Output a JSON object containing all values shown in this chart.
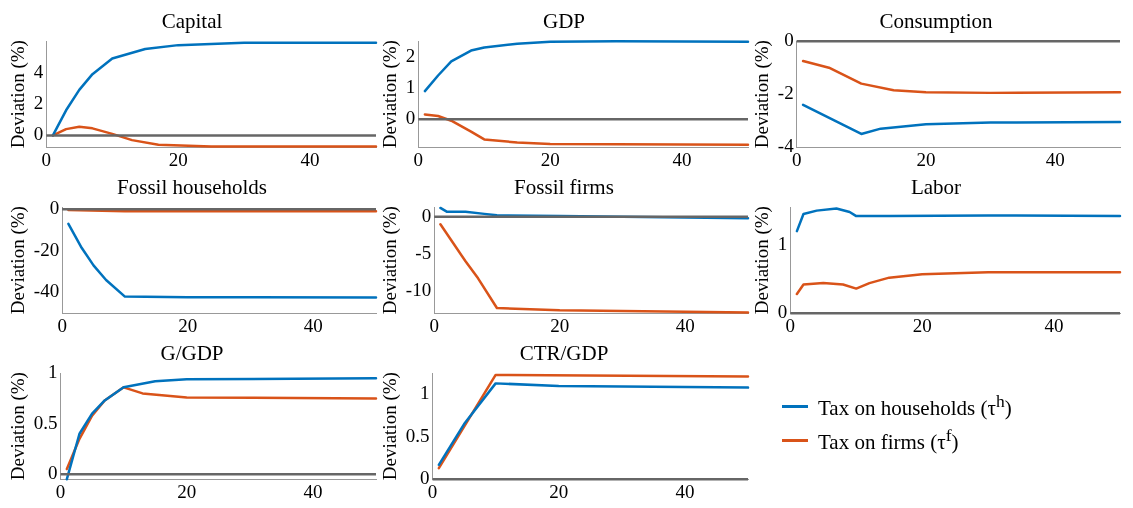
{
  "chart_data": [
    {
      "type": "line",
      "title": "Capital",
      "ylabel": "Deviation (%)",
      "xlim": [
        0,
        50
      ],
      "xticks": [
        0,
        20,
        40
      ],
      "ylim": [
        -0.75,
        6
      ],
      "yticks": [
        0,
        2,
        4
      ],
      "grid": false,
      "legend": false,
      "marker": "none",
      "line_style": "solid",
      "ref_lines": [
        {
          "axis": "y",
          "value": 0,
          "color": "#666666"
        }
      ],
      "series": [
        {
          "color": "#0072bd",
          "x": [
            1,
            3,
            5,
            7,
            10,
            15,
            20,
            30,
            50
          ],
          "values": [
            0,
            1.6,
            2.9,
            3.9,
            4.9,
            5.5,
            5.75,
            5.9,
            5.9
          ]
        },
        {
          "color": "#d95319",
          "x": [
            1,
            3,
            5,
            7,
            10,
            13,
            17,
            25,
            50
          ],
          "values": [
            0,
            0.4,
            0.55,
            0.45,
            0.1,
            -0.3,
            -0.6,
            -0.7,
            -0.7
          ]
        }
      ]
    },
    {
      "type": "line",
      "title": "GDP",
      "ylabel": "Deviation (%)",
      "xlim": [
        0,
        50
      ],
      "xticks": [
        0,
        20,
        40
      ],
      "ylim": [
        -0.9,
        2.5
      ],
      "yticks": [
        0,
        1,
        2
      ],
      "grid": false,
      "legend": false,
      "marker": "none",
      "line_style": "solid",
      "ref_lines": [
        {
          "axis": "y",
          "value": 0,
          "color": "#666666"
        }
      ],
      "series": [
        {
          "color": "#0072bd",
          "x": [
            1,
            3,
            5,
            8,
            10,
            15,
            20,
            30,
            50
          ],
          "values": [
            0.9,
            1.4,
            1.85,
            2.2,
            2.3,
            2.42,
            2.48,
            2.5,
            2.48
          ]
        },
        {
          "color": "#d95319",
          "x": [
            1,
            3,
            5,
            8,
            10,
            15,
            20,
            50
          ],
          "values": [
            0.15,
            0.1,
            -0.05,
            -0.4,
            -0.65,
            -0.75,
            -0.8,
            -0.82
          ]
        }
      ]
    },
    {
      "type": "line",
      "title": "Consumption",
      "ylabel": "Deviation (%)",
      "xlim": [
        0,
        50
      ],
      "xticks": [
        0,
        20,
        40
      ],
      "ylim": [
        -4,
        0
      ],
      "yticks": [
        -4,
        -2,
        0
      ],
      "grid": false,
      "legend": false,
      "marker": "none",
      "line_style": "solid",
      "ref_lines": [
        {
          "axis": "y",
          "value": 0,
          "color": "#666666"
        }
      ],
      "series": [
        {
          "color": "#0072bd",
          "x": [
            1,
            10,
            13,
            20,
            30,
            50
          ],
          "values": [
            -2.4,
            -3.5,
            -3.3,
            -3.13,
            -3.07,
            -3.05
          ]
        },
        {
          "color": "#d95319",
          "x": [
            1,
            5,
            10,
            15,
            20,
            30,
            50
          ],
          "values": [
            -0.75,
            -1.0,
            -1.6,
            -1.85,
            -1.93,
            -1.95,
            -1.93
          ]
        }
      ]
    },
    {
      "type": "line",
      "title": "Fossil households",
      "ylabel": "Deviation (%)",
      "xlim": [
        0,
        50
      ],
      "xticks": [
        0,
        20,
        40
      ],
      "ylim": [
        -50,
        1
      ],
      "yticks": [
        -40,
        -20,
        0
      ],
      "grid": false,
      "legend": false,
      "marker": "none",
      "line_style": "solid",
      "ref_lines": [
        {
          "axis": "y",
          "value": 0,
          "color": "#666666"
        }
      ],
      "series": [
        {
          "color": "#0072bd",
          "x": [
            1,
            3,
            5,
            7,
            10,
            20,
            50
          ],
          "values": [
            -7,
            -18,
            -27,
            -34,
            -42,
            -42.3,
            -42.5
          ]
        },
        {
          "color": "#d95319",
          "x": [
            1,
            10,
            50
          ],
          "values": [
            -0.3,
            -1,
            -1
          ]
        }
      ]
    },
    {
      "type": "line",
      "title": "Fossil firms",
      "ylabel": "Deviation (%)",
      "xlim": [
        0,
        50
      ],
      "xticks": [
        0,
        20,
        40
      ],
      "ylim": [
        -13,
        1.3
      ],
      "yticks": [
        -10,
        -5,
        0
      ],
      "grid": false,
      "legend": false,
      "marker": "none",
      "line_style": "solid",
      "ref_lines": [
        {
          "axis": "y",
          "value": 0,
          "color": "#666666"
        }
      ],
      "series": [
        {
          "color": "#0072bd",
          "x": [
            1,
            2,
            5,
            8,
            10,
            20,
            30,
            50
          ],
          "values": [
            1.2,
            0.7,
            0.7,
            0.4,
            0.2,
            0.1,
            0,
            -0.2
          ]
        },
        {
          "color": "#d95319",
          "x": [
            1,
            3,
            5,
            7,
            10,
            20,
            50
          ],
          "values": [
            -1,
            -3.5,
            -6,
            -8.3,
            -12.3,
            -12.6,
            -12.9
          ]
        }
      ]
    },
    {
      "type": "line",
      "title": "Labor",
      "ylabel": "Deviation (%)",
      "xlim": [
        0,
        50
      ],
      "xticks": [
        0,
        20,
        40
      ],
      "ylim": [
        0,
        1.55
      ],
      "yticks": [
        0,
        1
      ],
      "grid": false,
      "legend": false,
      "marker": "none",
      "line_style": "solid",
      "ref_lines": [
        {
          "axis": "y",
          "value": 0,
          "color": "#666666"
        }
      ],
      "series": [
        {
          "color": "#0072bd",
          "x": [
            1,
            2,
            4,
            7,
            9,
            10,
            15,
            30,
            50
          ],
          "values": [
            1.2,
            1.45,
            1.5,
            1.53,
            1.48,
            1.42,
            1.42,
            1.43,
            1.42
          ]
        },
        {
          "color": "#d95319",
          "x": [
            1,
            2,
            5,
            8,
            10,
            12,
            15,
            20,
            30,
            50
          ],
          "values": [
            0.28,
            0.42,
            0.44,
            0.42,
            0.36,
            0.44,
            0.52,
            0.57,
            0.6,
            0.6
          ]
        }
      ]
    },
    {
      "type": "line",
      "title": "G/GDP",
      "ylabel": "Deviation (%)",
      "xlim": [
        0,
        50
      ],
      "xticks": [
        0,
        20,
        40
      ],
      "ylim": [
        -0.05,
        1
      ],
      "yticks": [
        0,
        0.5,
        1
      ],
      "grid": false,
      "legend": false,
      "marker": "none",
      "line_style": "solid",
      "ref_lines": [
        {
          "axis": "y",
          "value": 0,
          "color": "#666666"
        }
      ],
      "series": [
        {
          "color": "#0072bd",
          "x": [
            1,
            3,
            5,
            7,
            10,
            15,
            20,
            50
          ],
          "values": [
            -0.05,
            0.4,
            0.6,
            0.73,
            0.86,
            0.92,
            0.94,
            0.95
          ]
        },
        {
          "color": "#d95319",
          "x": [
            1,
            3,
            5,
            7,
            10,
            13,
            20,
            50
          ],
          "values": [
            0.05,
            0.35,
            0.58,
            0.73,
            0.86,
            0.8,
            0.76,
            0.75
          ]
        }
      ]
    },
    {
      "type": "line",
      "title": "CTR/GDP",
      "ylabel": "Deviation (%)",
      "xlim": [
        0,
        50
      ],
      "xticks": [
        0,
        20,
        40
      ],
      "ylim": [
        0,
        1.25
      ],
      "yticks": [
        0,
        0.5,
        1
      ],
      "grid": false,
      "legend": "right",
      "marker": "none",
      "line_style": "solid",
      "ref_lines": [
        {
          "axis": "y",
          "value": 0,
          "color": "#666666"
        }
      ],
      "series": [
        {
          "name": "Tax on households (τ$^{h}$)",
          "color": "#0072bd",
          "x": [
            1,
            5,
            10,
            20,
            50
          ],
          "values": [
            0.17,
            0.65,
            1.13,
            1.1,
            1.08
          ]
        },
        {
          "name": "Tax on firms (τ$^{f}$)",
          "color": "#d95319",
          "x": [
            1,
            10,
            50
          ],
          "values": [
            0.13,
            1.23,
            1.21
          ]
        }
      ]
    }
  ]
}
